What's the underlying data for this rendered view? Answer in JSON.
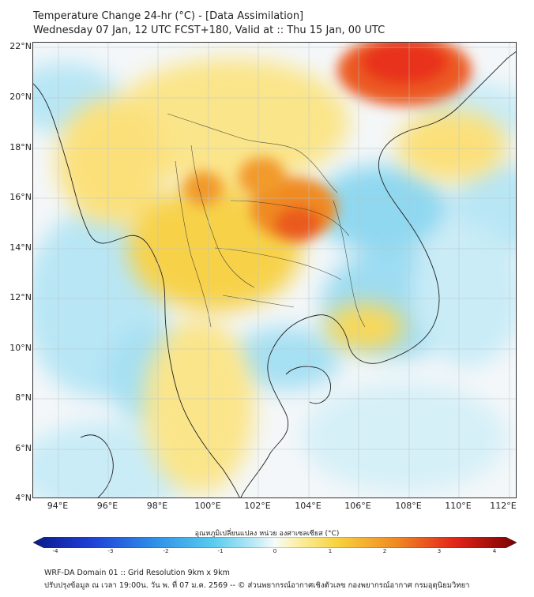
{
  "title": {
    "line1": "Temperature Change 24-hr (°C) - [Data Assimilation]",
    "line2": "Wednesday 07 Jan, 12 UTC FCST+180, Valid at :: Thu 15 Jan, 00 UTC"
  },
  "map": {
    "lat_labels": [
      "22°N",
      "20°N",
      "18°N",
      "16°N",
      "14°N",
      "12°N",
      "10°N",
      "8°N",
      "6°N",
      "4°N"
    ],
    "lon_labels": [
      "94°E",
      "96°E",
      "98°E",
      "100°E",
      "102°E",
      "104°E",
      "106°E",
      "108°E",
      "110°E",
      "112°E"
    ],
    "lat_range": [
      4,
      22
    ],
    "lon_range": [
      93,
      112.3
    ],
    "colors": {
      "warm_strong": "#e8301a",
      "warm_mid": "#f08a24",
      "warm_light": "#f6cd3c",
      "warm_pale": "#fbeea0",
      "neutral": "#f4f7f9",
      "cool_pale": "#c9ecf7",
      "cool_light": "#8fd8f0",
      "cool_mid": "#45bde8"
    }
  },
  "colorbar": {
    "title": "อุณหภูมิเปลี่ยนแปลง หน่วย องศาเซลเซียส (°C)",
    "ticks": [
      "-4",
      "-3",
      "-2",
      "-1",
      "0",
      "1",
      "2",
      "3",
      "4"
    ],
    "range": [
      -4,
      4
    ]
  },
  "footer": {
    "line1": "WRF-DA Domain 01 :: Grid Resolution 9km x 9km",
    "line2": "ปรับปรุงข้อมูล ณ เวลา 19:00น. วัน พ. ที่ 07 ม.ค. 2569 -- © ส่วนพยากรณ์อากาศเชิงตัวเลข กองพยากรณ์อากาศ กรมอุตุนิยมวิทยา"
  }
}
